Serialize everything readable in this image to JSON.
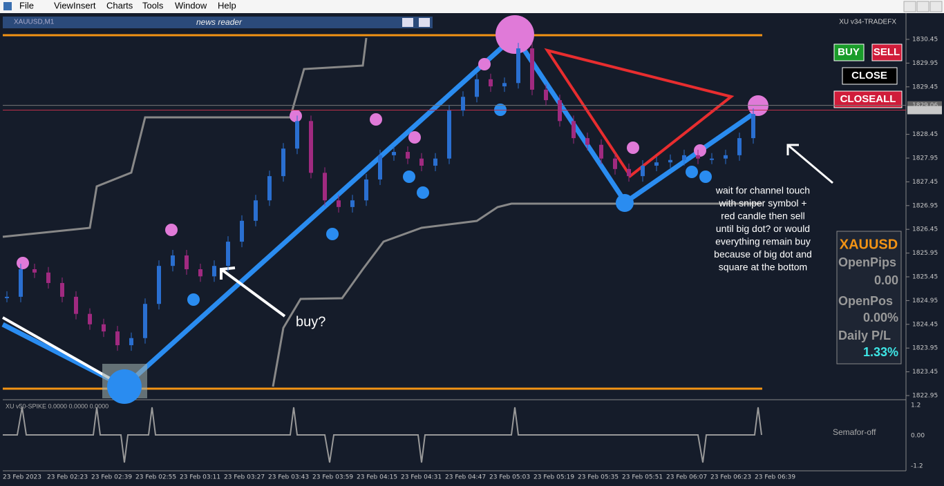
{
  "menu": [
    "File",
    "View",
    "Insert",
    "Charts",
    "Tools",
    "Window",
    "Help"
  ],
  "chart_window": {
    "symbol": "XAUUSD,M1",
    "news": "news reader",
    "expert": "XU v34-TRADEFX",
    "price_ticks": [
      1830.45,
      1829.95,
      1829.45,
      1828.45,
      1827.95,
      1827.45,
      1826.95,
      1826.45,
      1825.95,
      1825.45,
      1824.95,
      1824.45,
      1823.95,
      1823.45,
      1822.95
    ],
    "bid": 1829.06,
    "ask": 1828.96,
    "closes": [
      1825.03,
      1825.61,
      1825.54,
      1825.32,
      1825.03,
      1824.67,
      1824.45,
      1824.3,
      1824.01,
      1824.16,
      1824.88,
      1825.68,
      1825.9,
      1825.61,
      1825.46,
      1825.68,
      1826.19,
      1826.63,
      1827.06,
      1827.57,
      1828.15,
      1828.73,
      1827.64,
      1827.06,
      1826.92,
      1827.06,
      1827.5,
      1828.01,
      1828.08,
      1827.94,
      1827.79,
      1827.94,
      1828.95,
      1829.24,
      1829.61,
      1829.46,
      1829.53,
      1830.26,
      1829.39,
      1829.17,
      1828.73,
      1828.37,
      1828.23,
      1827.94,
      1827.72,
      1827.57,
      1827.79,
      1827.86,
      1827.91,
      1828.01,
      1827.94,
      1827.94,
      1828.01,
      1828.37,
      1828.88
    ],
    "times": [
      "23 Feb 2023",
      "23 Feb 02:23",
      "23 Feb 02:39",
      "23 Feb 02:55",
      "23 Feb 03:11",
      "23 Feb 03:27",
      "23 Feb 03:43",
      "23 Feb 03:59",
      "23 Feb 04:15",
      "23 Feb 04:31",
      "23 Feb 04:47",
      "23 Feb 05:03",
      "23 Feb 05:19",
      "23 Feb 05:35",
      "23 Feb 05:51",
      "23 Feb 06:07",
      "23 Feb 06:23",
      "23 Feb 06:39"
    ]
  },
  "indicator": {
    "name": "XU v50-SPIKE 0.0000 0.0000 0.0000",
    "status": "Semafor-off",
    "ticks": [
      "1.2",
      "0.00",
      "-1.2"
    ]
  },
  "buttons": {
    "buy": "BUY",
    "sell": "SELL",
    "close": "CLOSE",
    "closeall": "CLOSEALL"
  },
  "panel": {
    "symbol": "XAUUSD",
    "open_pips_label": "OpenPips",
    "open_pips": "0.00",
    "open_pos_label": "OpenPos",
    "open_pos": "0.00%",
    "daily_label": "Daily P/L",
    "daily": "1.33%"
  },
  "annotations": {
    "buy": "buy?",
    "note": [
      "wait for channel touch",
      "with sniper symbol +",
      "red candle then sell",
      "until big dot? or would",
      "everything remain buy",
      "because of big dot and",
      "square at the bottom"
    ]
  }
}
